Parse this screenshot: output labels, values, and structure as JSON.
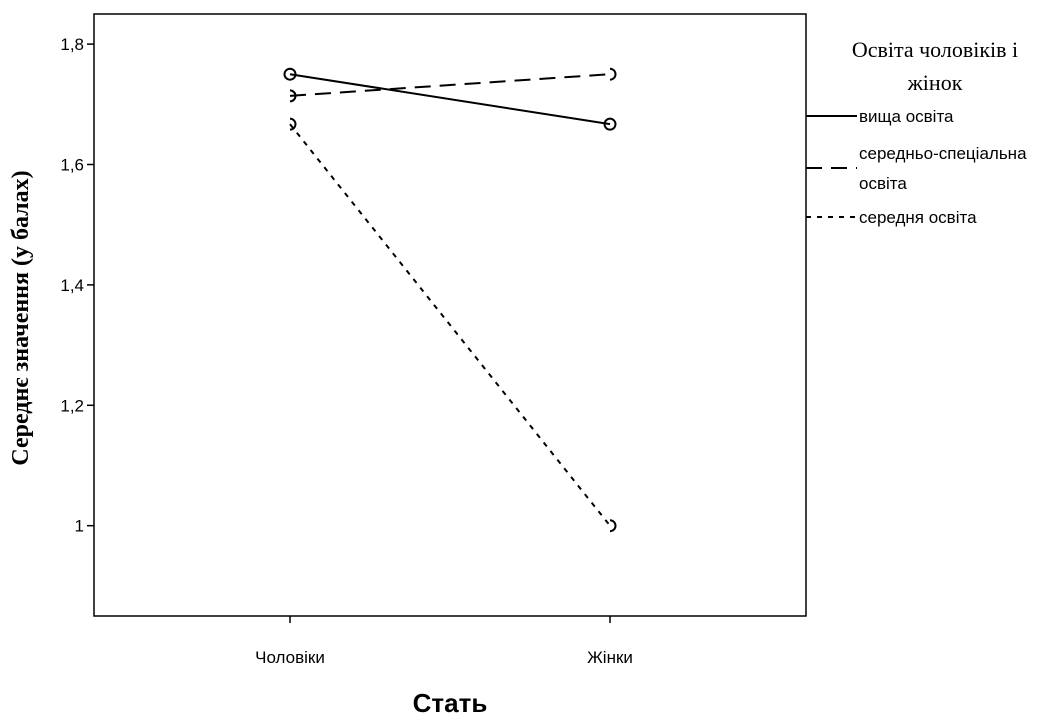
{
  "chart_data": {
    "type": "line",
    "categories": [
      "Чоловіки",
      "Жінки"
    ],
    "series": [
      {
        "name": "вища освіта",
        "values": [
          1.75,
          1.667
        ],
        "dash": "solid",
        "marker": "circle"
      },
      {
        "name": "середньо-спеціальна освіта",
        "values": [
          1.714,
          1.75
        ],
        "dash": "long-dash",
        "marker": "half-circle"
      },
      {
        "name": "середня освіта",
        "values": [
          1.667,
          1.0
        ],
        "dash": "short-dash",
        "marker": "half-circle"
      }
    ],
    "xlabel": "Стать",
    "ylabel": "Середнє значення (у балах)",
    "ylim": [
      0.85,
      1.85
    ],
    "yticks": [
      1,
      1.2,
      1.4,
      1.6,
      1.8
    ],
    "ytick_labels": [
      "1",
      "1,2",
      "1,4",
      "1,6",
      "1,8"
    ],
    "grid": false,
    "legend": {
      "title_line1": "Освіта чоловіків і",
      "title_line2": "жінок",
      "placement": "right",
      "items": [
        {
          "label_lines": [
            "вища освіта"
          ]
        },
        {
          "label_lines": [
            "середньо-спеціальна",
            "освіта"
          ]
        },
        {
          "label_lines": [
            "середня освіта"
          ]
        }
      ]
    },
    "colors": {
      "line": "#000000",
      "background": "#ffffff"
    }
  }
}
